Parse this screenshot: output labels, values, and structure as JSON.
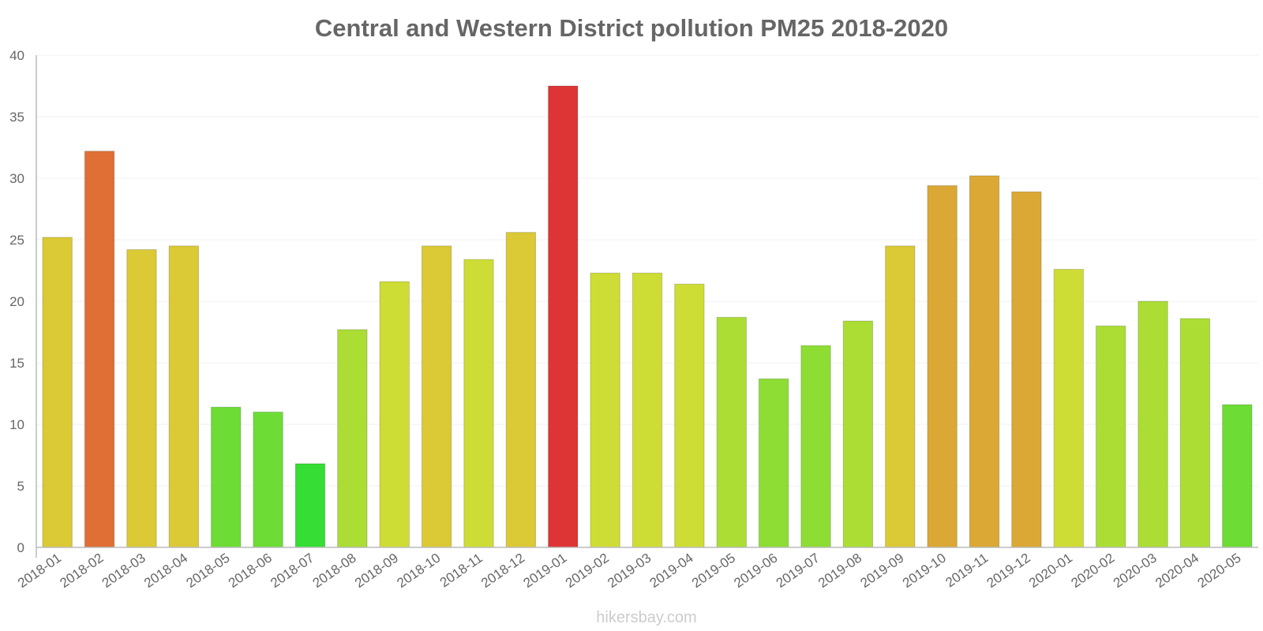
{
  "chart_data": {
    "type": "bar",
    "title": "Central and Western District pollution PM25 2018-2020",
    "xlabel": "",
    "ylabel": "",
    "ylim": [
      0,
      40
    ],
    "yticks": [
      0,
      5,
      10,
      15,
      20,
      25,
      30,
      35,
      40
    ],
    "grid": true,
    "categories": [
      "2018-01",
      "2018-02",
      "2018-03",
      "2018-04",
      "2018-05",
      "2018-06",
      "2018-07",
      "2018-08",
      "2018-09",
      "2018-10",
      "2018-11",
      "2018-12",
      "2019-01",
      "2019-02",
      "2019-03",
      "2019-04",
      "2019-05",
      "2019-06",
      "2019-07",
      "2019-08",
      "2019-09",
      "2019-10",
      "2019-11",
      "2019-12",
      "2020-01",
      "2020-02",
      "2020-03",
      "2020-04",
      "2020-05"
    ],
    "values": [
      25.2,
      32.2,
      24.2,
      24.5,
      11.4,
      11.0,
      6.8,
      17.7,
      21.6,
      24.5,
      23.4,
      25.6,
      37.5,
      22.3,
      22.3,
      21.4,
      18.7,
      13.7,
      16.4,
      18.4,
      24.5,
      29.4,
      30.2,
      28.9,
      22.6,
      18.0,
      20.0,
      18.6,
      11.6
    ],
    "colors": [
      "#dbc935",
      "#df6f35",
      "#dbc935",
      "#dbc935",
      "#6ddd35",
      "#6ddd35",
      "#35dd35",
      "#abdd35",
      "#cedd35",
      "#dbc935",
      "#cedd35",
      "#dbc935",
      "#dd3535",
      "#cedd35",
      "#cedd35",
      "#cedd35",
      "#abdd35",
      "#8ddd35",
      "#8ddd35",
      "#abdd35",
      "#dbc935",
      "#dba835",
      "#dba835",
      "#dba835",
      "#cedd35",
      "#abdd35",
      "#abdd35",
      "#abdd35",
      "#6ddd35"
    ]
  },
  "credit": "hikersbay.com"
}
